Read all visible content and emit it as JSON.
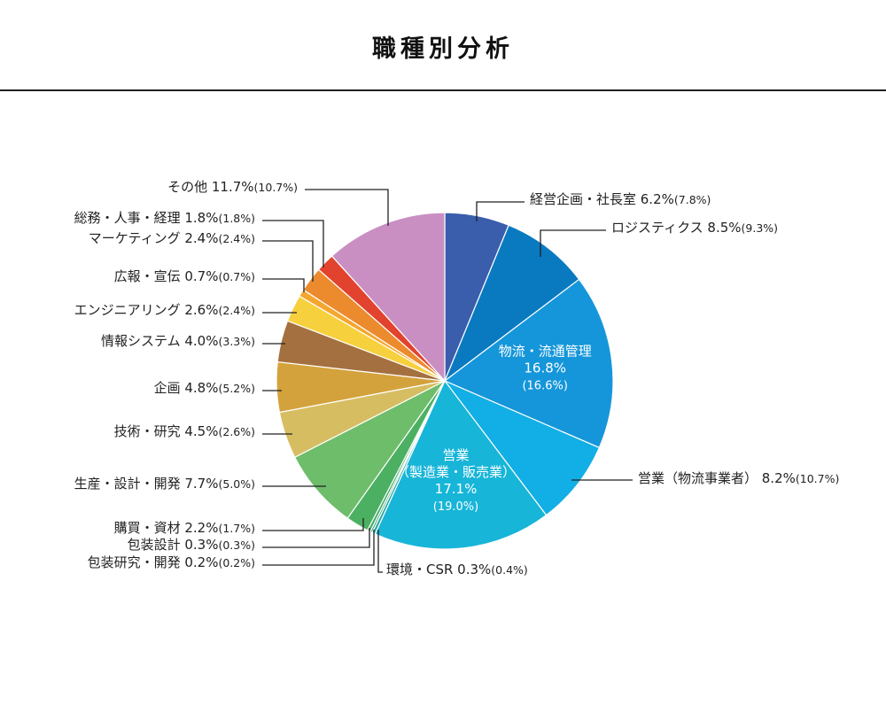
{
  "page": {
    "title": "職種別分析"
  },
  "chart_data": {
    "type": "pie",
    "title": "職種別分析",
    "slices": [
      {
        "name": "経営企画・社長室",
        "value": 6.2,
        "prev": "(7.8%)",
        "color": "#3a5dac"
      },
      {
        "name": "ロジスティクス",
        "value": 8.5,
        "prev": "(9.3%)",
        "color": "#0a7ac0"
      },
      {
        "name": "物流・流通管理",
        "value": 16.8,
        "prev": "(16.6%)",
        "color": "#1596da"
      },
      {
        "name": "営業（物流事業者）",
        "value": 8.2,
        "prev": "(10.7%)",
        "color": "#12aee6"
      },
      {
        "name": "営業（製造業・販売業）",
        "value": 17.1,
        "prev": "(19.0%)",
        "color": "#17b5d8"
      },
      {
        "name": "環境・CSR",
        "value": 0.3,
        "prev": "(0.4%)",
        "color": "#2ea8a0"
      },
      {
        "name": "包装研究・開発",
        "value": 0.2,
        "prev": "(0.2%)",
        "color": "#3aa87e"
      },
      {
        "name": "包装設計",
        "value": 0.3,
        "prev": "(0.3%)",
        "color": "#48ad6c"
      },
      {
        "name": "購買・資材",
        "value": 2.2,
        "prev": "(1.7%)",
        "color": "#4cb063"
      },
      {
        "name": "生産・設計・開発",
        "value": 7.7,
        "prev": "(5.0%)",
        "color": "#6dbd6b"
      },
      {
        "name": "技術・研究",
        "value": 4.5,
        "prev": "(2.6%)",
        "color": "#d7bd62"
      },
      {
        "name": "企画",
        "value": 4.8,
        "prev": "(5.2%)",
        "color": "#d4a23c"
      },
      {
        "name": "情報システム",
        "value": 4.0,
        "prev": "(3.3%)",
        "color": "#a5703f"
      },
      {
        "name": "エンジニアリング",
        "value": 2.6,
        "prev": "(2.4%)",
        "color": "#f7d03e"
      },
      {
        "name": "広報・宣伝",
        "value": 0.7,
        "prev": "(0.7%)",
        "color": "#f5a62e"
      },
      {
        "name": "マーケティング",
        "value": 2.4,
        "prev": "(2.4%)",
        "color": "#ec8a2e"
      },
      {
        "name": "総務・人事・経理",
        "value": 1.8,
        "prev": "(1.8%)",
        "color": "#e2432e"
      },
      {
        "name": "その他",
        "value": 11.7,
        "prev": "(10.7%)",
        "color": "#c98fc3"
      }
    ]
  }
}
